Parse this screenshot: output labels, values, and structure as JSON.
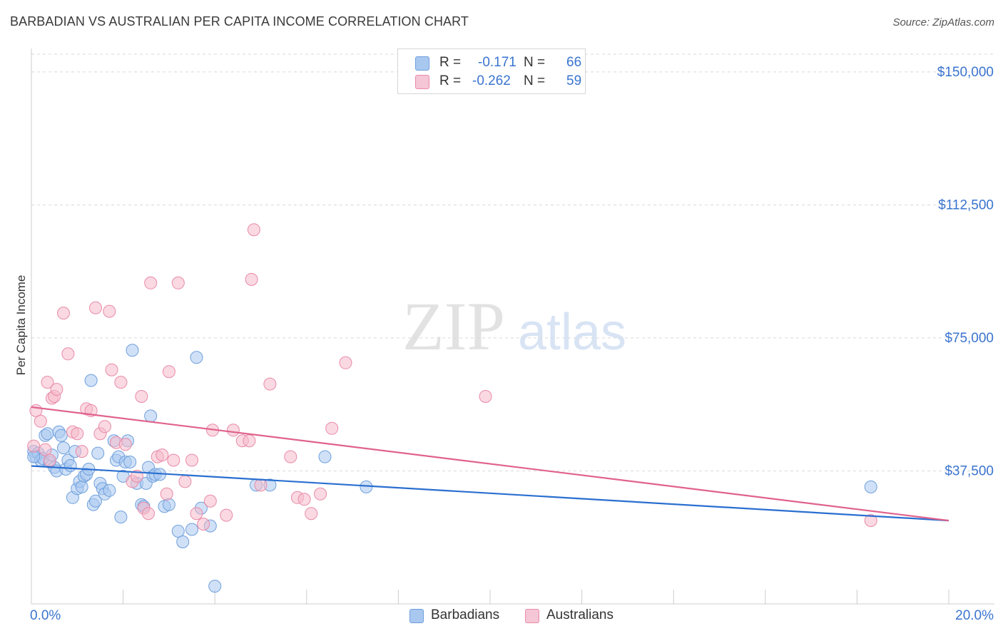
{
  "title": "BARBADIAN VS AUSTRALIAN PER CAPITA INCOME CORRELATION CHART",
  "source": "Source: ZipAtlas.com",
  "watermark": {
    "zip": "ZIP",
    "atlas": "atlas"
  },
  "colors": {
    "blue_fill": "#a9c8f0",
    "blue_stroke": "#6f9fdc",
    "blue_line": "#2a6fd0",
    "pink_fill": "#f5b9cb",
    "pink_stroke": "#e98aa8",
    "pink_line": "#e0628c",
    "grid": "#d9d9d9",
    "axis_text": "#3a74cf"
  },
  "legend_top": {
    "rows": [
      {
        "r_label": "R =",
        "r_value": "-0.171",
        "n_label": "N =",
        "n_value": "66",
        "swatch": "blue"
      },
      {
        "r_label": "R =",
        "r_value": "-0.262",
        "n_label": "N =",
        "n_value": "59",
        "swatch": "pink"
      }
    ]
  },
  "legend_bottom": [
    {
      "label": "Barbadians",
      "swatch": "blue"
    },
    {
      "label": "Australians",
      "swatch": "pink"
    }
  ],
  "chart_data": {
    "type": "scatter",
    "title": "BARBADIAN VS AUSTRALIAN PER CAPITA INCOME CORRELATION CHART",
    "xlabel": "",
    "ylabel": "Per Capita Income",
    "xlim": [
      0,
      20
    ],
    "ylim": [
      0,
      155000
    ],
    "x_tick_labels": {
      "left": "0.0%",
      "right": "20.0%"
    },
    "y_ticks": [
      {
        "value": 37500,
        "label": "$37,500"
      },
      {
        "value": 75000,
        "label": "$75,000"
      },
      {
        "value": 112500,
        "label": "$112,500"
      },
      {
        "value": 150000,
        "label": "$150,000"
      }
    ],
    "x_tick_values": [
      0,
      2,
      4,
      6,
      8,
      10,
      12,
      14,
      16,
      18,
      20
    ],
    "series": [
      {
        "name": "Barbadians",
        "color": "blue",
        "r": -0.171,
        "n": 66,
        "trend": {
          "x0": 0,
          "y0": 38900,
          "x1": 20,
          "y1": 23500
        },
        "points": [
          [
            0.05,
            43000
          ],
          [
            0.1,
            41500
          ],
          [
            0.15,
            42500
          ],
          [
            0.2,
            40500
          ],
          [
            0.25,
            41000
          ],
          [
            0.3,
            47500
          ],
          [
            0.35,
            48000
          ],
          [
            0.4,
            40000
          ],
          [
            0.45,
            42000
          ],
          [
            0.5,
            38500
          ],
          [
            0.55,
            37500
          ],
          [
            0.6,
            48500
          ],
          [
            0.65,
            47500
          ],
          [
            0.7,
            44000
          ],
          [
            0.75,
            38000
          ],
          [
            0.8,
            40500
          ],
          [
            0.85,
            39000
          ],
          [
            0.9,
            30000
          ],
          [
            0.95,
            43000
          ],
          [
            1.0,
            32500
          ],
          [
            1.05,
            34500
          ],
          [
            1.1,
            33000
          ],
          [
            1.15,
            36000
          ],
          [
            1.2,
            36500
          ],
          [
            1.25,
            38000
          ],
          [
            1.3,
            63000
          ],
          [
            1.35,
            28000
          ],
          [
            1.4,
            29000
          ],
          [
            1.45,
            42500
          ],
          [
            1.5,
            34000
          ],
          [
            1.55,
            32500
          ],
          [
            1.6,
            31000
          ],
          [
            1.7,
            32000
          ],
          [
            1.8,
            46000
          ],
          [
            1.85,
            40500
          ],
          [
            1.9,
            41500
          ],
          [
            1.95,
            24500
          ],
          [
            2.0,
            36000
          ],
          [
            2.05,
            40000
          ],
          [
            2.1,
            46000
          ],
          [
            2.15,
            40000
          ],
          [
            2.3,
            34000
          ],
          [
            2.4,
            28000
          ],
          [
            2.45,
            27500
          ],
          [
            2.5,
            34000
          ],
          [
            2.55,
            38500
          ],
          [
            2.6,
            53000
          ],
          [
            2.65,
            36000
          ],
          [
            2.2,
            71500
          ],
          [
            2.7,
            36500
          ],
          [
            2.8,
            36500
          ],
          [
            2.9,
            27500
          ],
          [
            3.0,
            28000
          ],
          [
            3.2,
            20500
          ],
          [
            3.3,
            17500
          ],
          [
            3.5,
            21000
          ],
          [
            3.6,
            69500
          ],
          [
            3.7,
            27000
          ],
          [
            3.9,
            22000
          ],
          [
            4.0,
            5000
          ],
          [
            4.9,
            33500
          ],
          [
            5.2,
            33500
          ],
          [
            6.4,
            41500
          ],
          [
            7.3,
            33000
          ],
          [
            18.3,
            33000
          ],
          [
            0.05,
            41500
          ]
        ]
      },
      {
        "name": "Australians",
        "color": "pink",
        "r": -0.262,
        "n": 59,
        "trend": {
          "x0": 0,
          "y0": 55500,
          "x1": 20,
          "y1": 23500
        },
        "points": [
          [
            0.05,
            44500
          ],
          [
            0.1,
            54500
          ],
          [
            0.2,
            51500
          ],
          [
            0.3,
            43500
          ],
          [
            0.35,
            62500
          ],
          [
            0.4,
            40500
          ],
          [
            0.45,
            58000
          ],
          [
            0.5,
            58500
          ],
          [
            0.55,
            60500
          ],
          [
            0.7,
            82000
          ],
          [
            0.8,
            70500
          ],
          [
            0.9,
            48500
          ],
          [
            1.0,
            48000
          ],
          [
            1.1,
            43000
          ],
          [
            1.2,
            55000
          ],
          [
            1.3,
            54500
          ],
          [
            1.4,
            83500
          ],
          [
            1.5,
            48000
          ],
          [
            1.6,
            50000
          ],
          [
            1.7,
            82500
          ],
          [
            1.75,
            66000
          ],
          [
            1.85,
            45500
          ],
          [
            1.95,
            62500
          ],
          [
            2.05,
            45000
          ],
          [
            2.2,
            34500
          ],
          [
            2.3,
            36000
          ],
          [
            2.4,
            58500
          ],
          [
            2.45,
            27000
          ],
          [
            2.55,
            25500
          ],
          [
            2.6,
            90500
          ],
          [
            2.75,
            41500
          ],
          [
            2.85,
            42000
          ],
          [
            2.95,
            31000
          ],
          [
            3.0,
            65500
          ],
          [
            3.1,
            40500
          ],
          [
            3.2,
            90500
          ],
          [
            3.35,
            34500
          ],
          [
            3.5,
            40500
          ],
          [
            3.6,
            25500
          ],
          [
            3.75,
            22500
          ],
          [
            3.9,
            29000
          ],
          [
            3.95,
            49000
          ],
          [
            4.25,
            25000
          ],
          [
            4.4,
            49000
          ],
          [
            4.6,
            46000
          ],
          [
            4.75,
            46000
          ],
          [
            4.8,
            91500
          ],
          [
            4.85,
            105500
          ],
          [
            5.0,
            33500
          ],
          [
            5.2,
            62000
          ],
          [
            5.65,
            41500
          ],
          [
            5.8,
            30000
          ],
          [
            5.95,
            29500
          ],
          [
            6.1,
            25500
          ],
          [
            6.3,
            31000
          ],
          [
            6.55,
            49500
          ],
          [
            6.85,
            68000
          ],
          [
            9.9,
            58500
          ],
          [
            18.3,
            23500
          ]
        ]
      }
    ]
  }
}
